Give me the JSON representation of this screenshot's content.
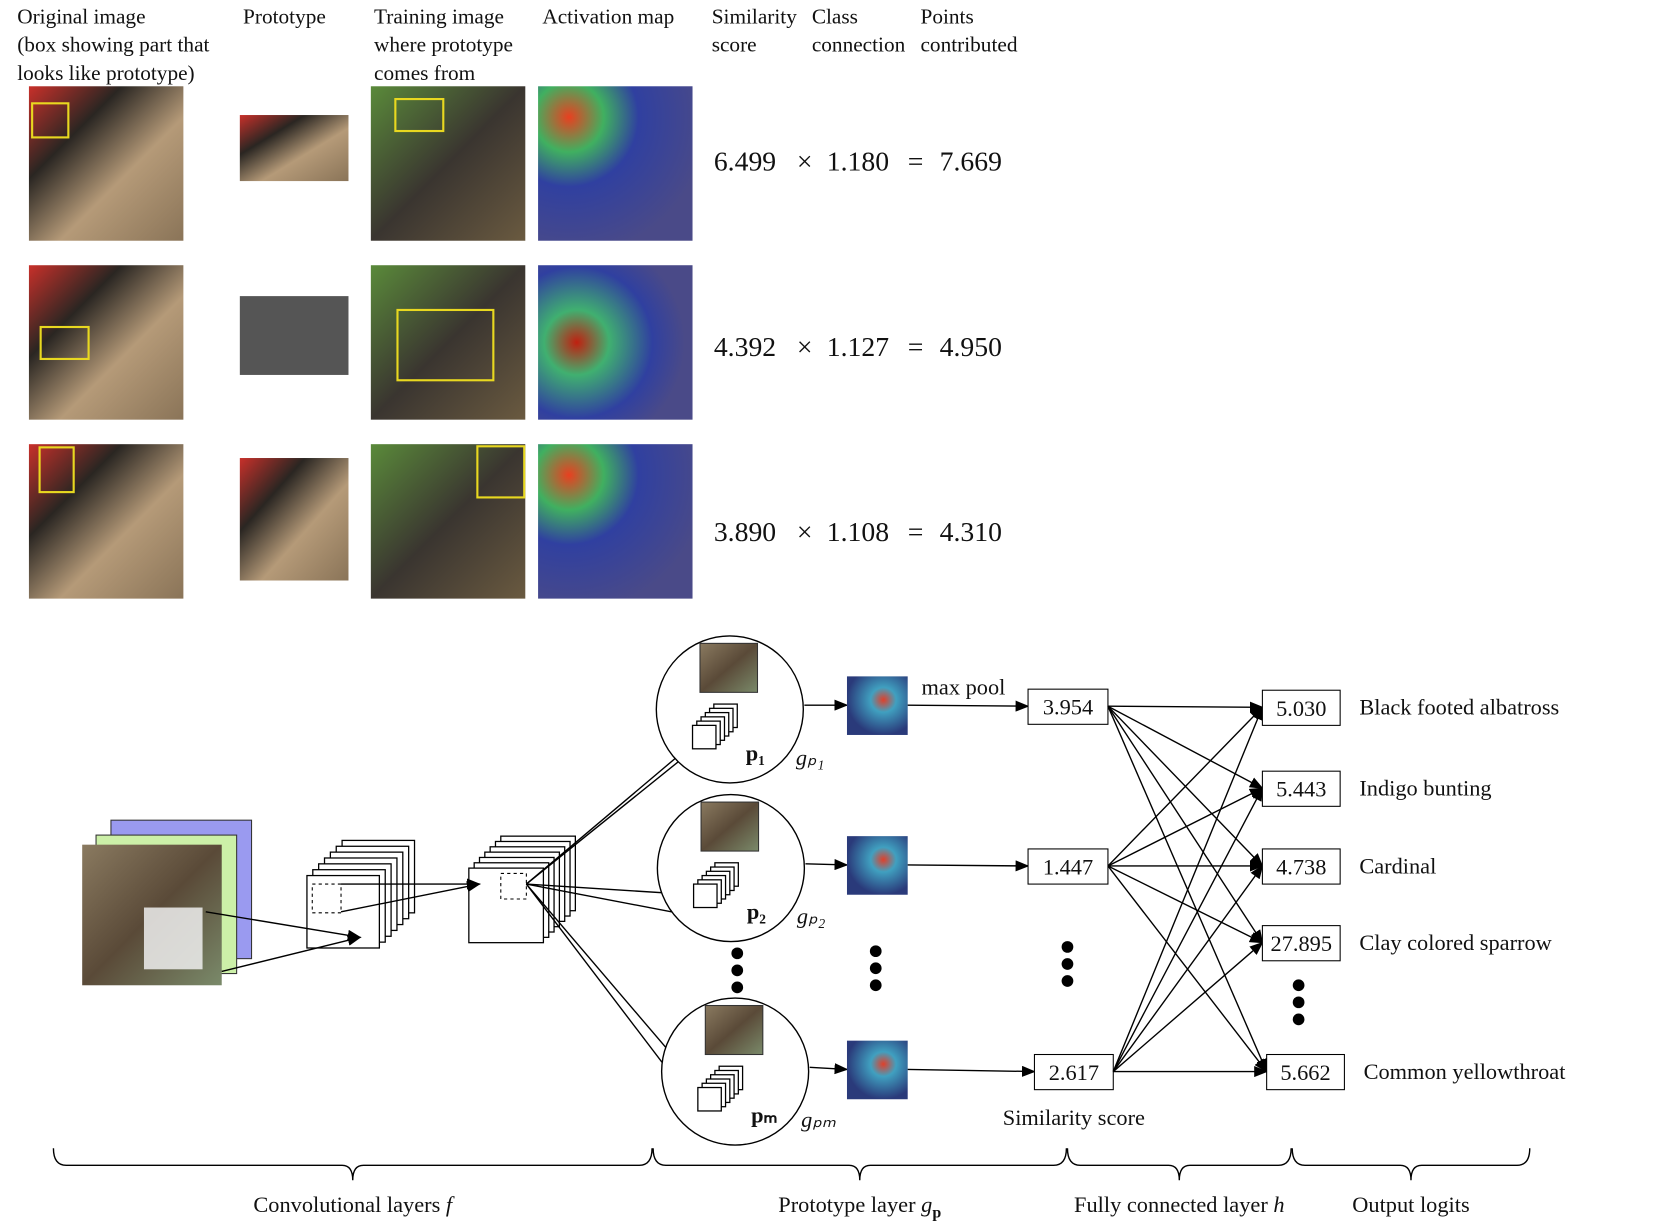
{
  "explanation": {
    "columns": [
      {
        "lines": [
          "Original image",
          "(box showing part that",
          "looks like prototype)"
        ]
      },
      {
        "lines": [
          "Prototype"
        ]
      },
      {
        "lines": [
          "Training image",
          "where prototype",
          "comes from"
        ]
      },
      {
        "lines": [
          "Activation map"
        ]
      },
      {
        "lines": [
          "Similarity",
          "score"
        ]
      },
      {
        "lines": [
          "Class",
          "connection"
        ]
      },
      {
        "lines": [
          "Points",
          "contributed"
        ]
      }
    ],
    "times": "×",
    "equals": "=",
    "rows": [
      {
        "similarity": "6.499",
        "connection": "1.180",
        "points": "7.669"
      },
      {
        "similarity": "4.392",
        "connection": "1.127",
        "points": "4.950"
      },
      {
        "similarity": "3.890",
        "connection": "1.108",
        "points": "4.310"
      }
    ]
  },
  "architecture": {
    "prototypes": [
      {
        "name": "p₁",
        "layer": "gₚ₁"
      },
      {
        "name": "p₂",
        "layer": "gₚ₂"
      },
      {
        "name": "pₘ",
        "layer": "gₚₘ"
      }
    ],
    "max_pool": "max pool",
    "similarity_scores": [
      "3.954",
      "1.447",
      "2.617"
    ],
    "similarity_label": "Similarity score",
    "logits": [
      {
        "value": "5.030",
        "class": "Black footed albatross"
      },
      {
        "value": "5.443",
        "class": "Indigo bunting"
      },
      {
        "value": "4.738",
        "class": "Cardinal"
      },
      {
        "value": "27.895",
        "class": "Clay colored sparrow"
      },
      {
        "value": "5.662",
        "class": "Common yellowthroat"
      }
    ],
    "stages": [
      {
        "text": "Convolutional layers ",
        "var": "f"
      },
      {
        "text": "Prototype layer ",
        "var": "g",
        "sub": "p"
      },
      {
        "text": "Fully connected layer ",
        "var": "h"
      },
      {
        "text": "Output logits"
      }
    ]
  }
}
